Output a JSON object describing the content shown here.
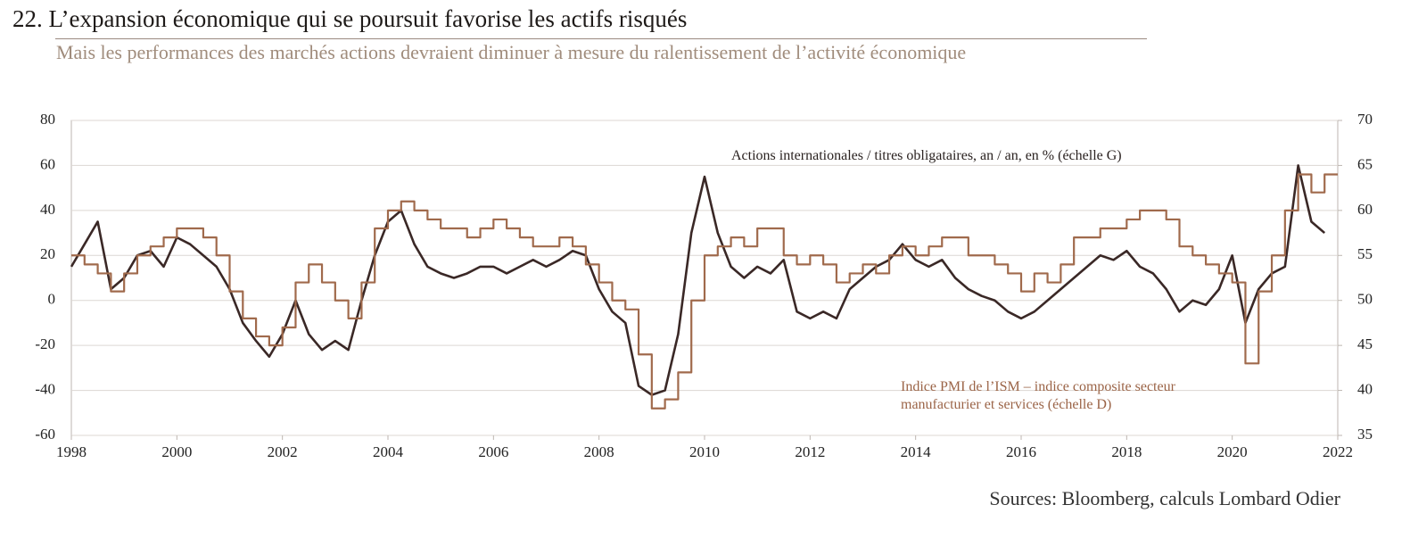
{
  "chart_data": {
    "type": "line",
    "number": "22.",
    "title": "L’expansion économique qui se poursuit favorise les actifs risqués",
    "subtitle": "Mais les performances des marchés actions devraient diminuer à mesure du ralentissement de l’activité économique",
    "source": "Sources: Bloomberg, calculs Lombard Odier",
    "x": [
      1998,
      1998.25,
      1998.5,
      1998.75,
      1999,
      1999.25,
      1999.5,
      1999.75,
      2000,
      2000.25,
      2000.5,
      2000.75,
      2001,
      2001.25,
      2001.5,
      2001.75,
      2002,
      2002.25,
      2002.5,
      2002.75,
      2003,
      2003.25,
      2003.5,
      2003.75,
      2004,
      2004.25,
      2004.5,
      2004.75,
      2005,
      2005.25,
      2005.5,
      2005.75,
      2006,
      2006.25,
      2006.5,
      2006.75,
      2007,
      2007.25,
      2007.5,
      2007.75,
      2008,
      2008.25,
      2008.5,
      2008.75,
      2009,
      2009.25,
      2009.5,
      2009.75,
      2010,
      2010.25,
      2010.5,
      2010.75,
      2011,
      2011.25,
      2011.5,
      2011.75,
      2012,
      2012.25,
      2012.5,
      2012.75,
      2013,
      2013.25,
      2013.5,
      2013.75,
      2014,
      2014.25,
      2014.5,
      2014.75,
      2015,
      2015.25,
      2015.5,
      2015.75,
      2016,
      2016.25,
      2016.5,
      2016.75,
      2017,
      2017.25,
      2017.5,
      2017.75,
      2018,
      2018.25,
      2018.5,
      2018.75,
      2019,
      2019.25,
      2019.5,
      2019.75,
      2020,
      2020.25,
      2020.5,
      2020.75,
      2021,
      2021.25,
      2021.5,
      2021.75
    ],
    "series": [
      {
        "name": "Actions internationales / titres obligataires, an / an, en % (échelle G)",
        "color": "#3a2826",
        "axis": "y",
        "step": false,
        "values": [
          15,
          25,
          35,
          5,
          10,
          20,
          22,
          15,
          28,
          25,
          20,
          15,
          5,
          -10,
          -18,
          -25,
          -15,
          0,
          -15,
          -22,
          -18,
          -22,
          0,
          20,
          35,
          40,
          25,
          15,
          12,
          10,
          12,
          15,
          15,
          12,
          15,
          18,
          15,
          18,
          22,
          20,
          5,
          -5,
          -10,
          -38,
          -42,
          -40,
          -15,
          30,
          55,
          30,
          15,
          10,
          15,
          12,
          18,
          -5,
          -8,
          -5,
          -8,
          5,
          10,
          15,
          18,
          25,
          18,
          15,
          18,
          10,
          5,
          2,
          0,
          -5,
          -8,
          -5,
          0,
          5,
          10,
          15,
          20,
          18,
          22,
          15,
          12,
          5,
          -5,
          0,
          -2,
          5,
          20,
          -10,
          5,
          12,
          15,
          60,
          35,
          30
        ]
      },
      {
        "name": "Indice PMI de l’ISM – indice composite secteur manufacturier et services (échelle D)",
        "color": "#a06a4c",
        "axis": "y2",
        "step": true,
        "values": [
          55,
          54,
          53,
          51,
          53,
          55,
          56,
          57,
          58,
          58,
          57,
          55,
          51,
          48,
          46,
          45,
          47,
          52,
          54,
          52,
          50,
          48,
          52,
          58,
          60,
          61,
          60,
          59,
          58,
          58,
          57,
          58,
          59,
          58,
          57,
          56,
          56,
          57,
          56,
          54,
          52,
          50,
          49,
          44,
          38,
          39,
          42,
          50,
          55,
          56,
          57,
          56,
          58,
          58,
          55,
          54,
          55,
          54,
          52,
          53,
          54,
          53,
          55,
          56,
          55,
          56,
          57,
          57,
          55,
          55,
          54,
          53,
          51,
          53,
          52,
          54,
          57,
          57,
          58,
          58,
          59,
          60,
          60,
          59,
          56,
          55,
          54,
          53,
          52,
          43,
          51,
          55,
          60,
          64,
          62,
          64
        ]
      }
    ],
    "xlim": [
      1998,
      2022
    ],
    "xticks": [
      1998,
      2000,
      2002,
      2004,
      2006,
      2008,
      2010,
      2012,
      2014,
      2016,
      2018,
      2020,
      2022
    ],
    "ylim": [
      -60,
      80
    ],
    "yticks": [
      -60,
      -40,
      -20,
      0,
      20,
      40,
      60,
      80
    ],
    "y2lim": [
      35,
      70
    ],
    "y2ticks": [
      35,
      40,
      45,
      50,
      55,
      60,
      65,
      70
    ],
    "grid": true
  }
}
